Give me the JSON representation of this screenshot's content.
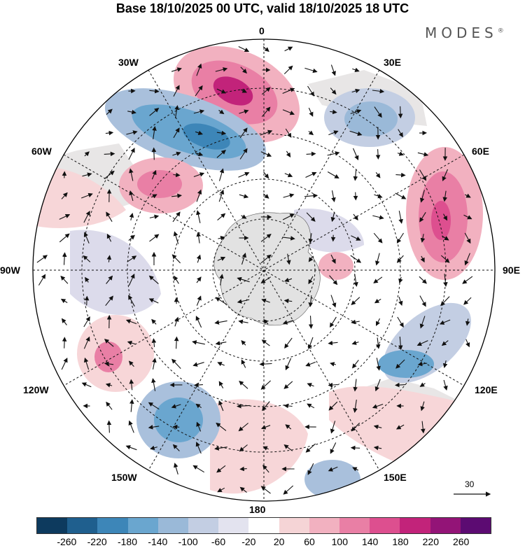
{
  "title": "Base 18/10/2025 00 UTC, valid 18/10/2025 18 UTC",
  "brand": {
    "name": "MODES",
    "mark": "®"
  },
  "longitude_labels": {
    "top": "0",
    "bottom": "180",
    "left": "90W",
    "right": "90E",
    "l30w": "30W",
    "l30e": "30E",
    "l60w": "60W",
    "l60e": "60E",
    "l120w": "120W",
    "l120e": "120E",
    "l150w": "150W",
    "l150e": "150E"
  },
  "vector_scale": {
    "label": "30"
  },
  "colorbar": {
    "colors": [
      "#0d3a5e",
      "#1f5f8e",
      "#3d86b8",
      "#6aa6cf",
      "#9ab9d8",
      "#c3cee3",
      "#e3e3ef",
      "#ffffff",
      "#f5d4d6",
      "#f2b1c0",
      "#e97fa5",
      "#dd4f8f",
      "#c2237a",
      "#931477",
      "#5c0b72"
    ],
    "labels": [
      "-260",
      "-220",
      "-180",
      "-140",
      "-100",
      "-60",
      "-20",
      "20",
      "60",
      "100",
      "140",
      "180",
      "220",
      "260"
    ]
  },
  "colors": {
    "ocean": "#ffffff",
    "land": "#d9d9d9",
    "antarctica": "#e2e2e2",
    "pos_light": "#f7d6d8",
    "pos_mid": "#f2b1c0",
    "pos_strong": "#e97fa5",
    "pos_max": "#dd4f8f",
    "neg_light": "#dcdbeb",
    "neg_mid": "#a9c0dc",
    "neg_strong": "#6aa6cf",
    "neg_max": "#3d86b8"
  }
}
